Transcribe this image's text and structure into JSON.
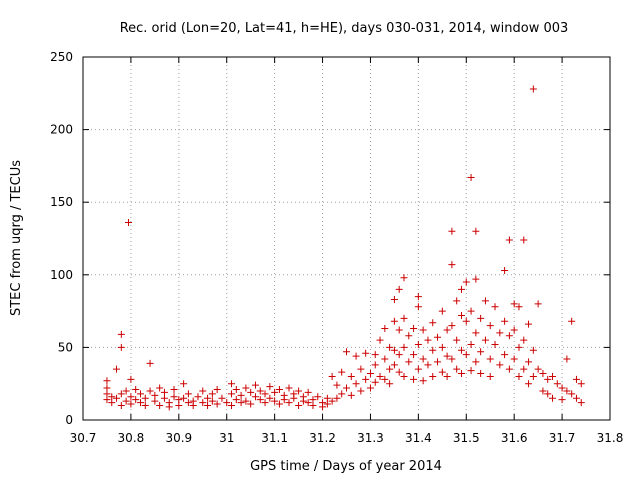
{
  "chart_data": {
    "type": "scatter",
    "title": "Rec. orid (Lon=20, Lat=41, h=HE), days 030-031, 2014, window 003",
    "xlabel": "GPS time / Days of year 2014",
    "ylabel": "STEC from uqrg / TECUs",
    "xlim": [
      30.7,
      31.8
    ],
    "ylim": [
      0,
      250
    ],
    "xticks": [
      30.7,
      30.8,
      30.9,
      31,
      31.1,
      31.2,
      31.3,
      31.4,
      31.5,
      31.6,
      31.7,
      31.8
    ],
    "xtick_labels": [
      "30.7",
      "30.8",
      "30.9",
      "31",
      "31.1",
      "31.2",
      "31.3",
      "31.4",
      "31.5",
      "31.6",
      "31.7",
      "31.8"
    ],
    "yticks": [
      0,
      50,
      100,
      150,
      200,
      250
    ],
    "ytick_labels": [
      "0",
      "50",
      "100",
      "150",
      "200",
      "250"
    ],
    "grid": true,
    "marker": "+",
    "color": "#cc0000",
    "series": [
      {
        "name": "STEC",
        "points": [
          [
            30.75,
            27
          ],
          [
            30.75,
            22
          ],
          [
            30.75,
            18
          ],
          [
            30.75,
            14
          ],
          [
            30.76,
            16
          ],
          [
            30.76,
            12
          ],
          [
            30.77,
            35
          ],
          [
            30.77,
            15
          ],
          [
            30.78,
            18
          ],
          [
            30.78,
            10
          ],
          [
            30.78,
            59
          ],
          [
            30.78,
            50
          ],
          [
            30.79,
            20
          ],
          [
            30.79,
            13
          ],
          [
            30.795,
            136
          ],
          [
            30.8,
            28
          ],
          [
            30.8,
            16
          ],
          [
            30.8,
            11
          ],
          [
            30.81,
            21
          ],
          [
            30.81,
            14
          ],
          [
            30.82,
            12
          ],
          [
            30.82,
            18
          ],
          [
            30.83,
            15
          ],
          [
            30.83,
            10
          ],
          [
            30.84,
            39
          ],
          [
            30.84,
            20
          ],
          [
            30.85,
            13
          ],
          [
            30.85,
            17
          ],
          [
            30.86,
            22
          ],
          [
            30.86,
            10
          ],
          [
            30.87,
            15
          ],
          [
            30.87,
            19
          ],
          [
            30.88,
            12
          ],
          [
            30.88,
            9
          ],
          [
            30.89,
            16
          ],
          [
            30.89,
            21
          ],
          [
            30.9,
            14
          ],
          [
            30.9,
            10
          ],
          [
            30.91,
            25
          ],
          [
            30.91,
            15
          ],
          [
            30.92,
            18
          ],
          [
            30.92,
            12
          ],
          [
            30.93,
            13
          ],
          [
            30.93,
            10
          ],
          [
            30.94,
            16
          ],
          [
            30.95,
            20
          ],
          [
            30.95,
            12
          ],
          [
            30.96,
            15
          ],
          [
            30.96,
            10
          ],
          [
            30.97,
            18
          ],
          [
            30.97,
            13
          ],
          [
            30.98,
            11
          ],
          [
            30.98,
            21
          ],
          [
            30.99,
            15
          ],
          [
            31.0,
            12
          ],
          [
            31.01,
            25
          ],
          [
            31.01,
            18
          ],
          [
            31.01,
            10
          ],
          [
            31.02,
            14
          ],
          [
            31.02,
            21
          ],
          [
            31.03,
            12
          ],
          [
            31.03,
            17
          ],
          [
            31.04,
            22
          ],
          [
            31.04,
            13
          ],
          [
            31.05,
            19
          ],
          [
            31.05,
            11
          ],
          [
            31.06,
            24
          ],
          [
            31.06,
            16
          ],
          [
            31.07,
            14
          ],
          [
            31.07,
            20
          ],
          [
            31.08,
            12
          ],
          [
            31.08,
            18
          ],
          [
            31.09,
            23
          ],
          [
            31.09,
            15
          ],
          [
            31.1,
            13
          ],
          [
            31.1,
            19
          ],
          [
            31.11,
            21
          ],
          [
            31.11,
            11
          ],
          [
            31.12,
            17
          ],
          [
            31.12,
            14
          ],
          [
            31.13,
            22
          ],
          [
            31.13,
            12
          ],
          [
            31.14,
            18
          ],
          [
            31.14,
            15
          ],
          [
            31.15,
            20
          ],
          [
            31.15,
            10
          ],
          [
            31.16,
            16
          ],
          [
            31.16,
            13
          ],
          [
            31.17,
            12
          ],
          [
            31.17,
            19
          ],
          [
            31.18,
            14
          ],
          [
            31.18,
            10
          ],
          [
            31.19,
            16
          ],
          [
            31.2,
            12
          ],
          [
            31.2,
            9
          ],
          [
            31.21,
            15
          ],
          [
            31.21,
            11
          ],
          [
            31.22,
            30
          ],
          [
            31.22,
            13
          ],
          [
            31.23,
            24
          ],
          [
            31.23,
            15
          ],
          [
            31.24,
            33
          ],
          [
            31.24,
            18
          ],
          [
            31.25,
            47
          ],
          [
            31.25,
            22
          ],
          [
            31.26,
            30
          ],
          [
            31.26,
            17
          ],
          [
            31.27,
            44
          ],
          [
            31.27,
            25
          ],
          [
            31.28,
            35
          ],
          [
            31.28,
            20
          ],
          [
            31.29,
            46
          ],
          [
            31.29,
            28
          ],
          [
            31.3,
            32
          ],
          [
            31.3,
            22
          ],
          [
            31.31,
            45
          ],
          [
            31.31,
            38
          ],
          [
            31.31,
            26
          ],
          [
            31.32,
            55
          ],
          [
            31.32,
            30
          ],
          [
            31.33,
            63
          ],
          [
            31.33,
            42
          ],
          [
            31.33,
            28
          ],
          [
            31.34,
            50
          ],
          [
            31.34,
            35
          ],
          [
            31.34,
            25
          ],
          [
            31.35,
            83
          ],
          [
            31.35,
            68
          ],
          [
            31.35,
            48
          ],
          [
            31.35,
            38
          ],
          [
            31.36,
            90
          ],
          [
            31.36,
            62
          ],
          [
            31.36,
            45
          ],
          [
            31.36,
            33
          ],
          [
            31.37,
            98
          ],
          [
            31.37,
            70
          ],
          [
            31.37,
            50
          ],
          [
            31.37,
            30
          ],
          [
            31.38,
            58
          ],
          [
            31.38,
            40
          ],
          [
            31.39,
            63
          ],
          [
            31.39,
            45
          ],
          [
            31.39,
            28
          ],
          [
            31.4,
            85
          ],
          [
            31.4,
            78
          ],
          [
            31.4,
            52
          ],
          [
            31.4,
            35
          ],
          [
            31.41,
            62
          ],
          [
            31.41,
            42
          ],
          [
            31.41,
            27
          ],
          [
            31.42,
            55
          ],
          [
            31.42,
            38
          ],
          [
            31.43,
            67
          ],
          [
            31.43,
            48
          ],
          [
            31.43,
            30
          ],
          [
            31.44,
            57
          ],
          [
            31.44,
            40
          ],
          [
            31.45,
            75
          ],
          [
            31.45,
            50
          ],
          [
            31.45,
            33
          ],
          [
            31.46,
            62
          ],
          [
            31.46,
            44
          ],
          [
            31.46,
            30
          ],
          [
            31.47,
            130
          ],
          [
            31.47,
            107
          ],
          [
            31.47,
            65
          ],
          [
            31.47,
            42
          ],
          [
            31.48,
            82
          ],
          [
            31.48,
            55
          ],
          [
            31.48,
            35
          ],
          [
            31.49,
            90
          ],
          [
            31.49,
            72
          ],
          [
            31.49,
            48
          ],
          [
            31.49,
            32
          ],
          [
            31.5,
            95
          ],
          [
            31.5,
            68
          ],
          [
            31.5,
            45
          ],
          [
            31.51,
            167
          ],
          [
            31.51,
            75
          ],
          [
            31.51,
            52
          ],
          [
            31.51,
            34
          ],
          [
            31.52,
            130
          ],
          [
            31.52,
            97
          ],
          [
            31.52,
            60
          ],
          [
            31.52,
            40
          ],
          [
            31.53,
            70
          ],
          [
            31.53,
            47
          ],
          [
            31.53,
            32
          ],
          [
            31.54,
            82
          ],
          [
            31.54,
            55
          ],
          [
            31.55,
            65
          ],
          [
            31.55,
            42
          ],
          [
            31.55,
            30
          ],
          [
            31.56,
            78
          ],
          [
            31.56,
            52
          ],
          [
            31.57,
            60
          ],
          [
            31.57,
            38
          ],
          [
            31.58,
            103
          ],
          [
            31.58,
            68
          ],
          [
            31.58,
            45
          ],
          [
            31.59,
            124
          ],
          [
            31.59,
            58
          ],
          [
            31.59,
            35
          ],
          [
            31.6,
            80
          ],
          [
            31.6,
            62
          ],
          [
            31.6,
            42
          ],
          [
            31.61,
            78
          ],
          [
            31.61,
            50
          ],
          [
            31.61,
            30
          ],
          [
            31.62,
            124
          ],
          [
            31.62,
            55
          ],
          [
            31.62,
            35
          ],
          [
            31.63,
            66
          ],
          [
            31.63,
            40
          ],
          [
            31.63,
            25
          ],
          [
            31.64,
            228
          ],
          [
            31.64,
            48
          ],
          [
            31.64,
            30
          ],
          [
            31.65,
            80
          ],
          [
            31.65,
            35
          ],
          [
            31.66,
            32
          ],
          [
            31.66,
            20
          ],
          [
            31.67,
            28
          ],
          [
            31.67,
            18
          ],
          [
            31.68,
            30
          ],
          [
            31.68,
            15
          ],
          [
            31.69,
            25
          ],
          [
            31.7,
            22
          ],
          [
            31.7,
            14
          ],
          [
            31.71,
            42
          ],
          [
            31.71,
            20
          ],
          [
            31.72,
            68
          ],
          [
            31.72,
            18
          ],
          [
            31.73,
            28
          ],
          [
            31.73,
            15
          ],
          [
            31.74,
            25
          ],
          [
            31.74,
            12
          ]
        ]
      }
    ]
  }
}
